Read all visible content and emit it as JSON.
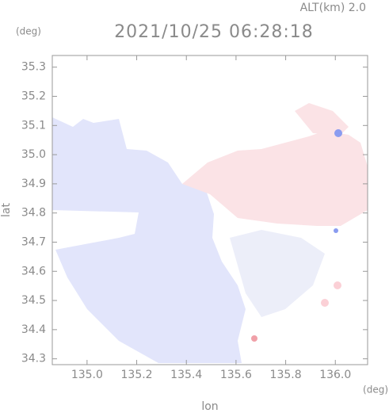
{
  "chart_data": {
    "type": "radar-image",
    "title": "2021/10/25 06:28:18",
    "subtitle": "ALT(km) 2.0",
    "xlabel": "lon",
    "ylabel": "lat",
    "xunit": "(deg)",
    "yunit": "(deg)",
    "xlim": [
      134.86,
      136.13
    ],
    "ylim": [
      34.28,
      35.34
    ],
    "xticks": [
      {
        "value": 135.0,
        "label": "135.0"
      },
      135.2,
      135.4,
      135.6,
      135.8,
      {
        "value": 136.0,
        "label": "136.0"
      }
    ],
    "yticks": [
      34.3,
      34.4,
      34.5,
      34.6,
      34.7,
      34.8,
      34.9,
      {
        "value": 35.0,
        "label": "35.0"
      },
      35.1,
      35.2,
      35.3
    ]
  }
}
